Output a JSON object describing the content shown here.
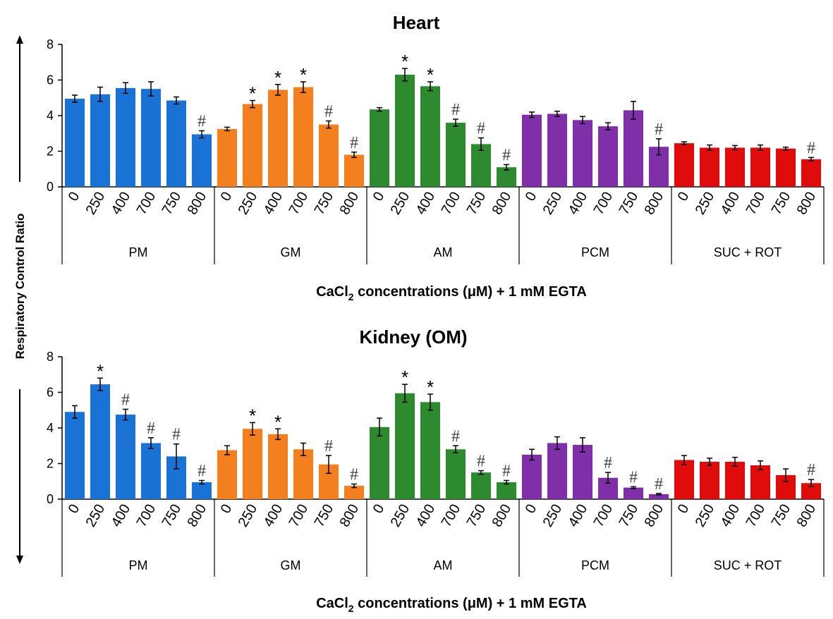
{
  "y_axis_label": "Respiratory Control Ratio",
  "chart_data": [
    {
      "type": "bar",
      "title": "Heart",
      "xlabel_parts": {
        "prefix": "CaCl",
        "sub": "2",
        "suffix": " concentrations (μM) + 1 mM EGTA"
      },
      "ylim": [
        0,
        8
      ],
      "yticks": [
        0,
        2,
        4,
        6,
        8
      ],
      "categories": [
        "0",
        "250",
        "400",
        "700",
        "750",
        "800"
      ],
      "groups": [
        {
          "name": "PM",
          "color": "#1a73d4",
          "values": [
            4.95,
            5.2,
            5.55,
            5.5,
            4.85,
            2.95
          ],
          "errors": [
            0.2,
            0.4,
            0.3,
            0.4,
            0.2,
            0.2
          ],
          "annotations": [
            "",
            "",
            "",
            "",
            "",
            "#"
          ]
        },
        {
          "name": "GM",
          "color": "#f47f1f",
          "values": [
            3.25,
            4.65,
            5.45,
            5.6,
            3.5,
            1.8
          ],
          "errors": [
            0.1,
            0.2,
            0.3,
            0.3,
            0.2,
            0.15
          ],
          "annotations": [
            "",
            "*",
            "*",
            "*",
            "#",
            "#"
          ]
        },
        {
          "name": "AM",
          "color": "#2e8a2e",
          "values": [
            4.35,
            6.3,
            5.65,
            3.6,
            2.4,
            1.1
          ],
          "errors": [
            0.1,
            0.35,
            0.25,
            0.2,
            0.35,
            0.15
          ],
          "annotations": [
            "",
            "*",
            "*",
            "#",
            "#",
            "#"
          ]
        },
        {
          "name": "PCM",
          "color": "#7f2fa8",
          "values": [
            4.05,
            4.1,
            3.75,
            3.4,
            4.3,
            2.25
          ],
          "errors": [
            0.15,
            0.15,
            0.2,
            0.2,
            0.5,
            0.45
          ],
          "annotations": [
            "",
            "",
            "",
            "",
            "",
            "#"
          ]
        },
        {
          "name": "SUC + ROT",
          "color": "#e00c0c",
          "values": [
            2.45,
            2.2,
            2.2,
            2.2,
            2.15,
            1.55
          ],
          "errors": [
            0.08,
            0.15,
            0.12,
            0.15,
            0.08,
            0.1
          ],
          "annotations": [
            "",
            "",
            "",
            "",
            "",
            "#"
          ]
        }
      ]
    },
    {
      "type": "bar",
      "title": "Kidney (OM)",
      "xlabel_parts": {
        "prefix": "CaCl",
        "sub": "2",
        "suffix": " concentrations (μM) + 1 mM EGTA"
      },
      "ylim": [
        0,
        8
      ],
      "yticks": [
        0,
        2,
        4,
        6,
        8
      ],
      "categories": [
        "0",
        "250",
        "400",
        "700",
        "750",
        "800"
      ],
      "groups": [
        {
          "name": "PM",
          "color": "#1a73d4",
          "values": [
            4.9,
            6.45,
            4.75,
            3.15,
            2.4,
            0.95
          ],
          "errors": [
            0.35,
            0.35,
            0.3,
            0.3,
            0.7,
            0.1
          ],
          "annotations": [
            "",
            "*",
            "#",
            "#",
            "#",
            "#"
          ]
        },
        {
          "name": "GM",
          "color": "#f47f1f",
          "values": [
            2.75,
            3.95,
            3.65,
            2.8,
            1.95,
            0.75
          ],
          "errors": [
            0.25,
            0.35,
            0.3,
            0.35,
            0.5,
            0.1
          ],
          "annotations": [
            "",
            "*",
            "*",
            "",
            "#",
            "#"
          ]
        },
        {
          "name": "AM",
          "color": "#2e8a2e",
          "values": [
            4.05,
            5.95,
            5.45,
            2.8,
            1.5,
            0.95
          ],
          "errors": [
            0.5,
            0.5,
            0.45,
            0.2,
            0.1,
            0.1
          ],
          "annotations": [
            "",
            "*",
            "*",
            "#",
            "#",
            "#"
          ]
        },
        {
          "name": "PCM",
          "color": "#7f2fa8",
          "values": [
            2.5,
            3.15,
            3.05,
            1.2,
            0.65,
            0.28
          ],
          "errors": [
            0.3,
            0.35,
            0.4,
            0.3,
            0.05,
            0.04
          ],
          "annotations": [
            "",
            "",
            "",
            "#",
            "#",
            "#"
          ]
        },
        {
          "name": "SUC + ROT",
          "color": "#e00c0c",
          "values": [
            2.2,
            2.1,
            2.1,
            1.9,
            1.35,
            0.9
          ],
          "errors": [
            0.25,
            0.2,
            0.25,
            0.25,
            0.35,
            0.2
          ],
          "annotations": [
            "",
            "",
            "",
            "",
            "",
            "#"
          ]
        }
      ]
    }
  ]
}
